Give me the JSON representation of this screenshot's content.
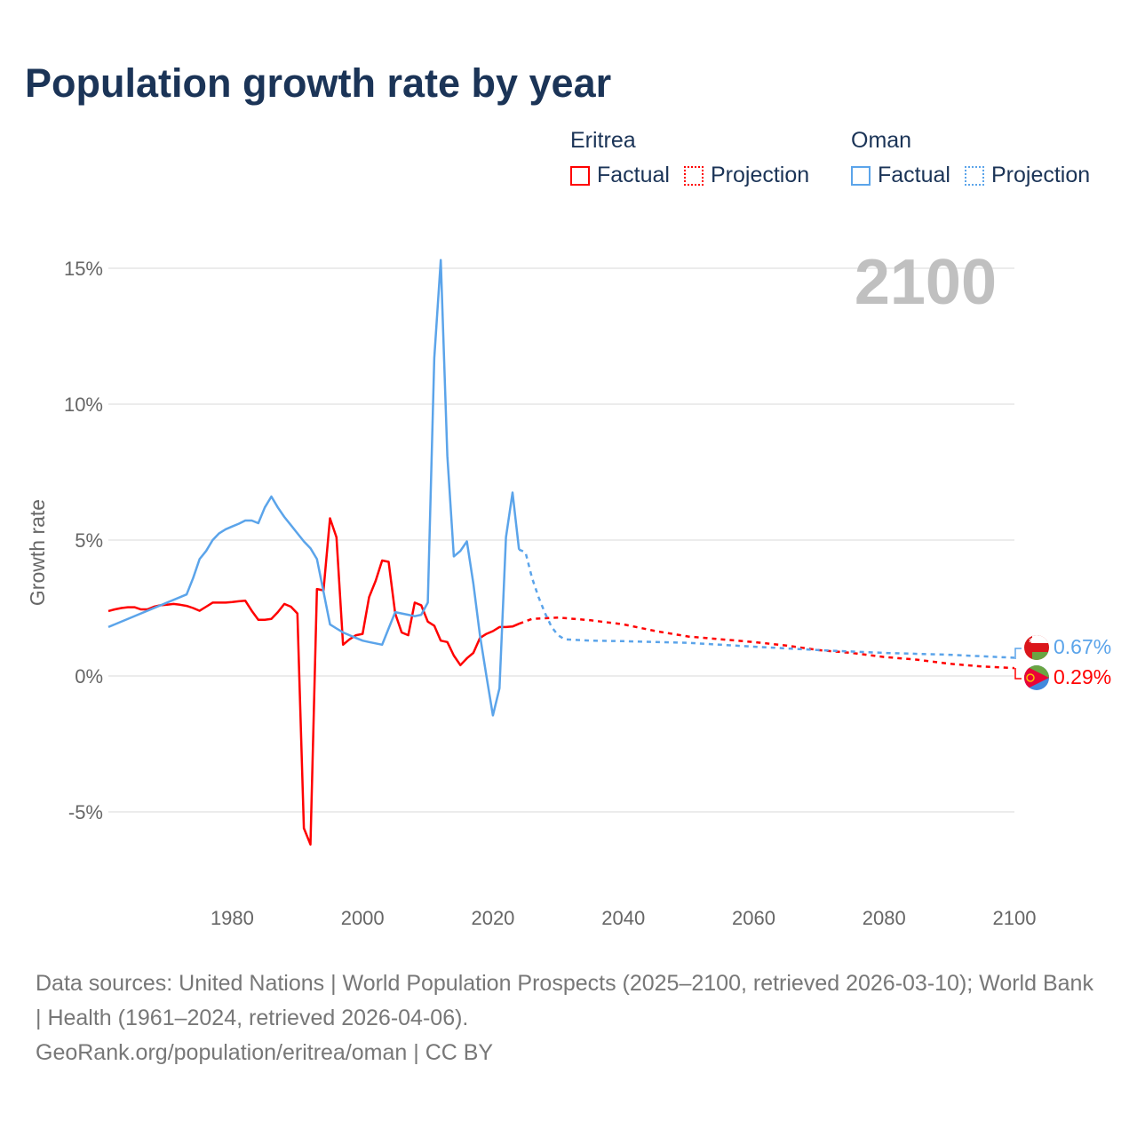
{
  "title": "Population growth rate by year",
  "legend": {
    "groups": [
      {
        "name": "Eritrea",
        "color": "#ff0000",
        "factual": "Factual",
        "projection": "Projection"
      },
      {
        "name": "Oman",
        "color": "#5ba4ea",
        "factual": "Factual",
        "projection": "Projection"
      }
    ]
  },
  "year_display": "2100",
  "end_labels": {
    "oman": "0.67%",
    "eritrea": "0.29%"
  },
  "footer": {
    "line1": "Data sources: United Nations | World Population Prospects (2025–2100, retrieved 2026-03-10); World Bank | Health (1961–2024, retrieved 2026-04-06).",
    "line2": "GeoRank.org/population/eritrea/oman | CC BY"
  },
  "chart_data": {
    "type": "line",
    "title": "Population growth rate by year",
    "xlabel": "",
    "ylabel": "Growth rate",
    "xlim": [
      1961,
      2100
    ],
    "ylim": [
      -7,
      16
    ],
    "xticks": [
      1980,
      2000,
      2020,
      2040,
      2060,
      2080,
      2100
    ],
    "xtick_labels": [
      "1980",
      "2000",
      "2020",
      "2040",
      "2060",
      "2080",
      "2100"
    ],
    "yticks": [
      -5,
      0,
      5,
      10,
      15
    ],
    "ytick_labels": [
      "-5%",
      "0%",
      "5%",
      "10%",
      "15%"
    ],
    "grid": true,
    "series": [
      {
        "name": "Eritrea Factual",
        "color": "#ff0000",
        "style": "solid",
        "x": [
          1961,
          1962,
          1963,
          1964,
          1965,
          1966,
          1967,
          1968,
          1969,
          1970,
          1971,
          1972,
          1973,
          1974,
          1975,
          1976,
          1977,
          1978,
          1979,
          1980,
          1981,
          1982,
          1983,
          1984,
          1985,
          1986,
          1987,
          1988,
          1989,
          1990,
          1991,
          1992,
          1993,
          1994,
          1995,
          1996,
          1997,
          1998,
          1999,
          2000,
          2001,
          2002,
          2003,
          2004,
          2005,
          2006,
          2007,
          2008,
          2009,
          2010,
          2011,
          2012,
          2013,
          2014,
          2015,
          2016,
          2017,
          2018,
          2019,
          2020,
          2021,
          2022,
          2023,
          2024
        ],
        "y": [
          2.39,
          2.45,
          2.5,
          2.53,
          2.53,
          2.45,
          2.45,
          2.55,
          2.6,
          2.62,
          2.65,
          2.62,
          2.58,
          2.5,
          2.4,
          2.55,
          2.7,
          2.7,
          2.7,
          2.72,
          2.75,
          2.77,
          2.4,
          2.07,
          2.07,
          2.1,
          2.35,
          2.65,
          2.55,
          2.3,
          -5.6,
          -6.2,
          3.2,
          3.15,
          5.8,
          5.1,
          1.15,
          1.35,
          1.5,
          1.55,
          2.9,
          3.5,
          4.25,
          4.2,
          2.3,
          1.6,
          1.5,
          2.7,
          2.6,
          2.0,
          1.85,
          1.3,
          1.25,
          0.75,
          0.4,
          0.65,
          0.85,
          1.4,
          1.55,
          1.65,
          1.8,
          1.8,
          1.82,
          1.92
        ]
      },
      {
        "name": "Eritrea Projection",
        "color": "#ff0000",
        "style": "dotted",
        "x": [
          2024,
          2026,
          2030,
          2035,
          2040,
          2045,
          2050,
          2055,
          2060,
          2065,
          2070,
          2075,
          2080,
          2085,
          2090,
          2095,
          2100
        ],
        "y": [
          1.92,
          2.1,
          2.15,
          2.05,
          1.9,
          1.65,
          1.45,
          1.35,
          1.25,
          1.12,
          0.95,
          0.85,
          0.7,
          0.6,
          0.45,
          0.35,
          0.29
        ]
      },
      {
        "name": "Oman Factual",
        "color": "#5ba4ea",
        "style": "solid",
        "x": [
          1961,
          1973,
          1974,
          1975,
          1976,
          1977,
          1978,
          1979,
          1980,
          1981,
          1982,
          1983,
          1984,
          1985,
          1986,
          1987,
          1988,
          1989,
          1990,
          1991,
          1992,
          1993,
          1994,
          1995,
          1996,
          1997,
          1998,
          1999,
          2000,
          2001,
          2002,
          2003,
          2004,
          2005,
          2006,
          2007,
          2008,
          2009,
          2010,
          2011,
          2012,
          2013,
          2014,
          2015,
          2016,
          2017,
          2018,
          2019,
          2020,
          2021,
          2022,
          2023,
          2024
        ],
        "y": [
          1.8,
          3.0,
          3.6,
          4.3,
          4.6,
          5.0,
          5.25,
          5.4,
          5.5,
          5.6,
          5.72,
          5.72,
          5.62,
          6.2,
          6.6,
          6.2,
          5.85,
          5.55,
          5.25,
          4.95,
          4.7,
          4.3,
          3.1,
          1.9,
          1.75,
          1.6,
          1.5,
          1.4,
          1.3,
          1.25,
          1.2,
          1.15,
          1.75,
          2.35,
          2.3,
          2.25,
          2.2,
          2.25,
          2.7,
          11.7,
          15.3,
          8.1,
          4.4,
          4.6,
          4.95,
          3.4,
          1.5,
          0.0,
          -1.45,
          -0.45,
          5.1,
          6.75,
          4.65
        ]
      },
      {
        "name": "Oman Projection",
        "color": "#5ba4ea",
        "style": "dotted",
        "x": [
          2024,
          2025,
          2026,
          2027,
          2028,
          2029,
          2030,
          2031,
          2035,
          2040,
          2050,
          2060,
          2070,
          2080,
          2090,
          2100
        ],
        "y": [
          4.65,
          4.55,
          3.6,
          2.9,
          2.3,
          1.8,
          1.5,
          1.35,
          1.3,
          1.28,
          1.22,
          1.08,
          0.95,
          0.85,
          0.78,
          0.67
        ]
      }
    ]
  }
}
